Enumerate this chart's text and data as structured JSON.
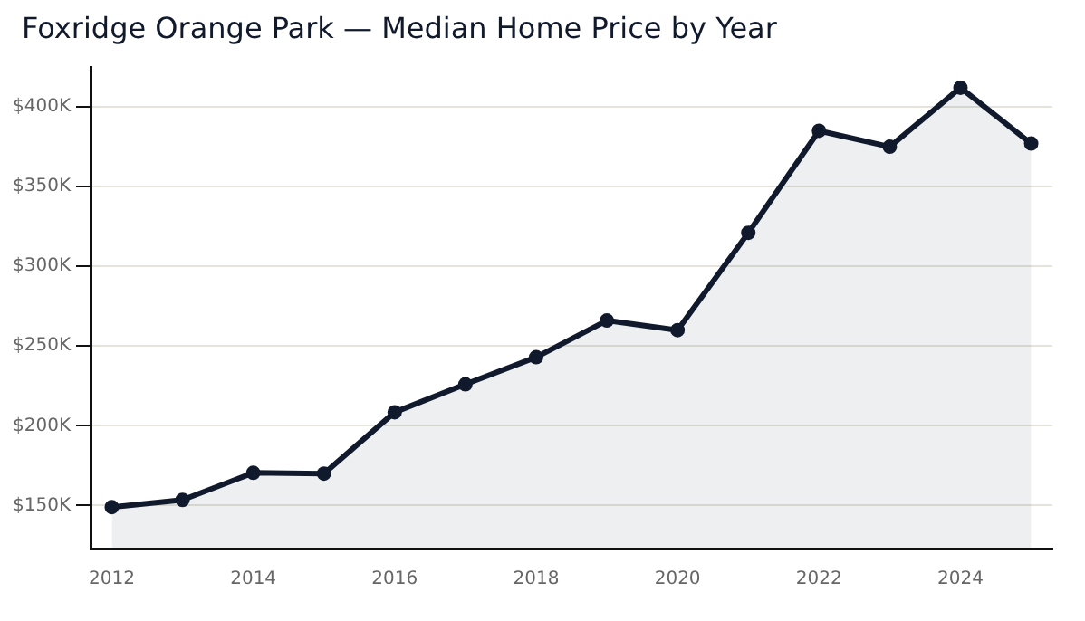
{
  "chart_data": {
    "type": "area",
    "title": "Foxridge Orange Park — Median Home Price by Year",
    "x": [
      2012,
      2013,
      2014,
      2015,
      2016,
      2017,
      2018,
      2019,
      2020,
      2021,
      2022,
      2023,
      2024,
      2025
    ],
    "series": [
      {
        "color": "#111a2c",
        "values": [
          149000,
          153500,
          170500,
          170000,
          208500,
          226000,
          243000,
          266000,
          260000,
          321000,
          385000,
          375000,
          412000,
          377000
        ]
      }
    ],
    "xlim": [
      2011.7,
      2025.3
    ],
    "xticks": [
      2012,
      2014,
      2016,
      2018,
      2020,
      2022,
      2024
    ],
    "ylim": [
      123000,
      425000
    ],
    "yticks": [
      {
        "value": 150000,
        "label": "$150K"
      },
      {
        "value": 200000,
        "label": "$200K"
      },
      {
        "value": 250000,
        "label": "$250K"
      },
      {
        "value": 300000,
        "label": "$300K"
      },
      {
        "value": 350000,
        "label": "$350K"
      },
      {
        "value": 400000,
        "label": "$400K"
      }
    ],
    "grid": "y",
    "marker": "circle",
    "line_style": "solid"
  }
}
